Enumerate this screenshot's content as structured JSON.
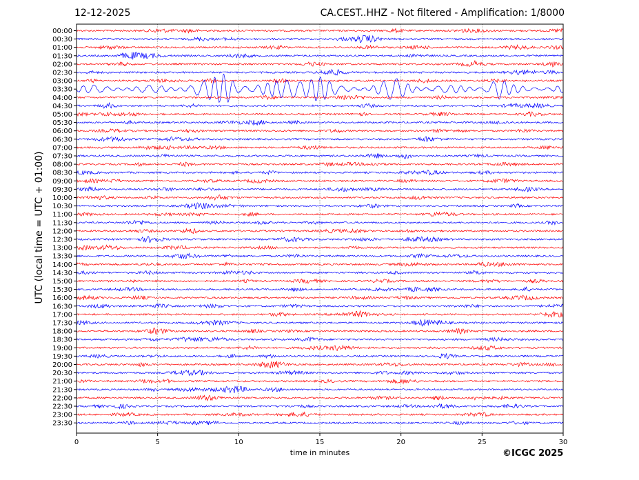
{
  "header": {
    "date": "12-12-2025",
    "title": "CA.CEST..HHZ - Not filtered - Amplification: 1/8000"
  },
  "credit": "©ICGC 2025",
  "colors": {
    "trace_a": "#ff0000",
    "trace_b": "#0000ff",
    "grid": "#555555",
    "axes": "#000000"
  },
  "chart_data": {
    "type": "line",
    "title": "CA.CEST..HHZ - Not filtered - Amplification: 1/8000",
    "xlabel": "time in minutes",
    "ylabel": "UTC (local time = UTC + 01:00)",
    "xlim": [
      0,
      30
    ],
    "x_ticks": [
      "0",
      "5",
      "10",
      "15",
      "20",
      "25",
      "30"
    ],
    "x_grid": true,
    "trace_colors": [
      "red",
      "blue"
    ],
    "rows": [
      "00:00",
      "00:30",
      "01:00",
      "01:30",
      "02:00",
      "02:30",
      "03:00",
      "03:30",
      "04:00",
      "04:30",
      "05:00",
      "05:30",
      "06:00",
      "06:30",
      "07:00",
      "07:30",
      "08:00",
      "08:30",
      "09:00",
      "09:30",
      "10:00",
      "10:30",
      "11:00",
      "11:30",
      "12:00",
      "12:30",
      "13:00",
      "13:30",
      "14:00",
      "14:30",
      "15:00",
      "15:30",
      "16:00",
      "16:30",
      "17:00",
      "17:30",
      "18:00",
      "18:30",
      "19:00",
      "19:30",
      "20:00",
      "20:30",
      "21:00",
      "21:30",
      "22:00",
      "22:30",
      "23:00",
      "23:30"
    ],
    "events": [
      {
        "row": "02:30",
        "x_start": 27.3,
        "x_end": 28.3,
        "amplitude": "small"
      },
      {
        "row": "03:30",
        "x_start": 0,
        "x_end": 30,
        "amplitude": "large"
      }
    ]
  }
}
